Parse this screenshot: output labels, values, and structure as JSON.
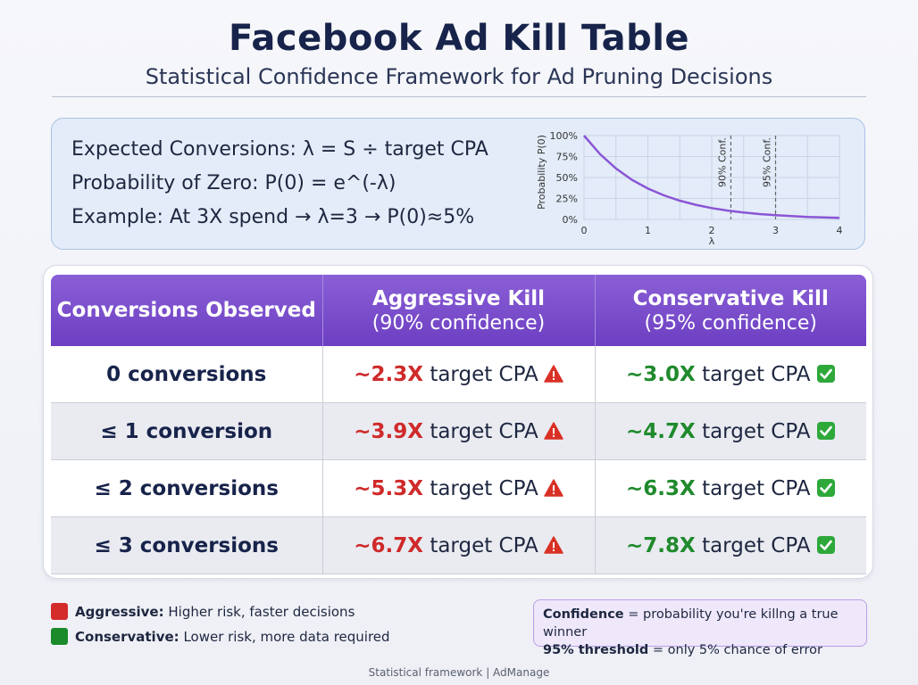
{
  "header": {
    "title": "Facebook Ad Kill Table",
    "subtitle": "Statistical Confidence Framework for Ad Pruning Decisions"
  },
  "formulas": {
    "line1": "Expected Conversions: λ = S ÷ target CPA",
    "line2": "Probability of Zero: P(0) = e^(-λ)",
    "line3": "Example: At 3X spend → λ=3 → P(0)≈5%"
  },
  "chart_data": {
    "type": "line",
    "title": "",
    "xlabel": "λ",
    "ylabel": "Probability P(0)",
    "xlim": [
      0,
      4
    ],
    "ylim": [
      0,
      100
    ],
    "x_ticks": [
      "0",
      "1",
      "2",
      "3",
      "4"
    ],
    "y_ticks": [
      "0%",
      "25%",
      "50%",
      "75%",
      "100%"
    ],
    "series": [
      {
        "name": "P(0) = e^(-λ)",
        "color": "#8a55d6",
        "x": [
          0,
          0.25,
          0.5,
          0.75,
          1,
          1.25,
          1.5,
          1.75,
          2,
          2.25,
          2.5,
          2.75,
          3,
          3.25,
          3.5,
          3.75,
          4
        ],
        "y": [
          100,
          77.9,
          60.7,
          47.2,
          36.8,
          28.7,
          22.3,
          17.4,
          13.5,
          10.5,
          8.2,
          6.4,
          5.0,
          3.9,
          3.0,
          2.4,
          1.8
        ]
      }
    ],
    "annotations": [
      {
        "x": 2.3,
        "label": "90% Conf."
      },
      {
        "x": 3.0,
        "label": "95% Conf."
      }
    ]
  },
  "table": {
    "headers": {
      "col1": "Conversions Observed",
      "col2_title": "Aggressive Kill",
      "col2_sub": "(90% confidence)",
      "col3_title": "Conservative Kill",
      "col3_sub": "(95% confidence)"
    },
    "rows": [
      {
        "condition": "0 conversions",
        "aggressive": "~2.3X",
        "conservative": "~3.0X",
        "unit": "target CPA"
      },
      {
        "condition": "≤ 1 conversion",
        "aggressive": "~3.9X",
        "conservative": "~4.7X",
        "unit": "target CPA"
      },
      {
        "condition": "≤ 2 conversions",
        "aggressive": "~5.3X",
        "conservative": "~6.3X",
        "unit": "target CPA"
      },
      {
        "condition": "≤ 3 conversions",
        "aggressive": "~6.7X",
        "conservative": "~7.8X",
        "unit": "target CPA"
      }
    ]
  },
  "legend": {
    "aggressive_key": "Aggressive:",
    "aggressive_text": "Higher risk, faster decisions",
    "conservative_key": "Conservative:",
    "conservative_text": "Lower risk, more data required"
  },
  "note": {
    "line1_key": "Confidence",
    "line1_text": "= probability you're killng a true winner",
    "line2_key": "95% threshold",
    "line2_text": "= only 5% chance of error"
  },
  "footer": {
    "text": "Statistical framework | AdManage"
  },
  "colors": {
    "aggressive": "#cf2a2a",
    "conservative": "#1f8a2c",
    "header_purple": "#6d3fc2"
  }
}
